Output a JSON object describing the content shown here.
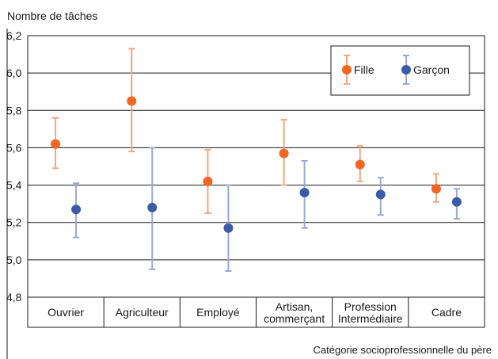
{
  "chart_data": {
    "type": "scatter",
    "ylabel": "Nombre de tâches",
    "xlabel": "Catégorie socioprofessionnelle du père",
    "ylim": [
      4.8,
      6.2
    ],
    "yticks": [
      4.8,
      5.0,
      5.2,
      5.4,
      5.6,
      5.8,
      6.0,
      6.2
    ],
    "ytick_labels": [
      "4,8",
      "5,0",
      "5,2",
      "5,4",
      "5,6",
      "5,8",
      "6,0",
      "6,2"
    ],
    "grid": true,
    "legend_position": "top-right",
    "categories": [
      [
        "Ouvrier"
      ],
      [
        "Agriculteur"
      ],
      [
        "Employé"
      ],
      [
        "Artisan,",
        "commerçant"
      ],
      [
        "Profession",
        "Intermédiaire"
      ],
      [
        "Cadre"
      ]
    ],
    "series": [
      {
        "name": "Fille",
        "color": "#f26522",
        "errcolor": "#f4a582",
        "values": [
          5.62,
          5.85,
          5.42,
          5.57,
          5.51,
          5.38
        ],
        "lower": [
          5.49,
          5.58,
          5.25,
          5.4,
          5.42,
          5.31
        ],
        "upper": [
          5.76,
          6.13,
          5.59,
          5.75,
          5.61,
          5.46
        ]
      },
      {
        "name": "Garçon",
        "color": "#3b5ba9",
        "errcolor": "#9aa9d1",
        "values": [
          5.27,
          5.28,
          5.17,
          5.36,
          5.35,
          5.31
        ],
        "lower": [
          5.12,
          4.95,
          4.94,
          5.17,
          5.24,
          5.22
        ],
        "upper": [
          5.41,
          5.6,
          5.4,
          5.53,
          5.44,
          5.38
        ]
      }
    ]
  }
}
